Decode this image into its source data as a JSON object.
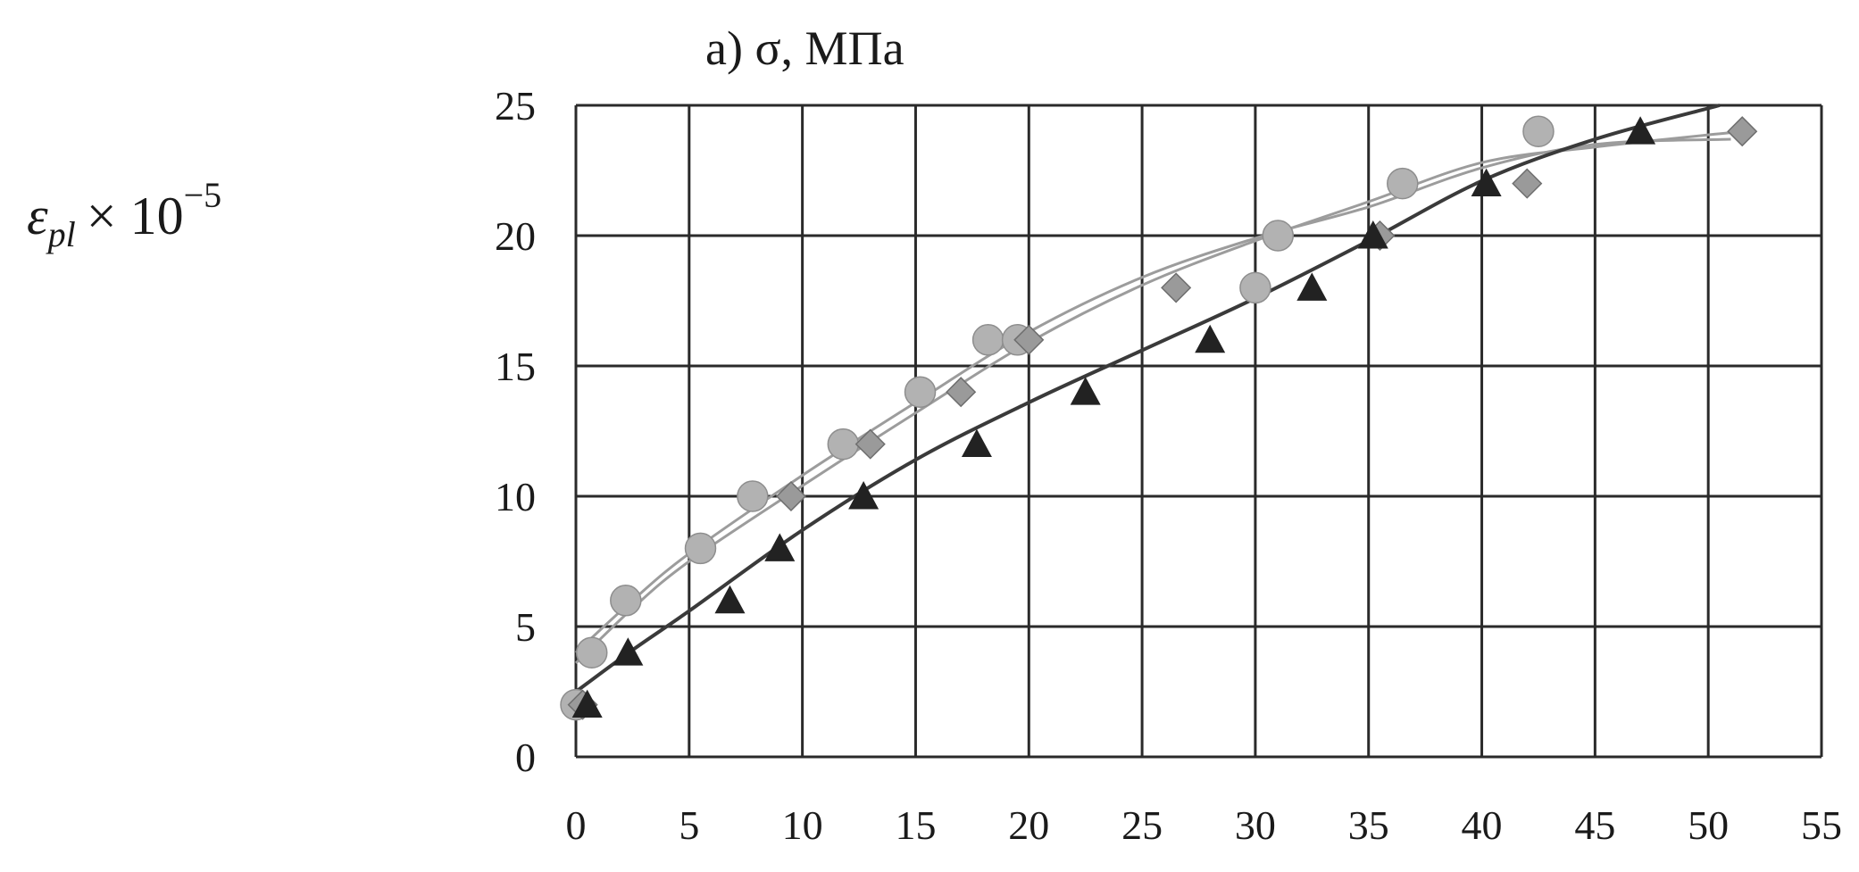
{
  "chart_data": {
    "type": "scatter",
    "title": "a)  σ, МПа",
    "ylabel": "εpl × 10−5",
    "ylabel_parts": {
      "base": "ε",
      "sub": "pl",
      "times": "× 10",
      "sup": "−5"
    },
    "xlabel": "",
    "xlim": [
      0,
      55
    ],
    "ylim": [
      0,
      25
    ],
    "x_ticks": [
      0,
      5,
      10,
      15,
      20,
      25,
      30,
      35,
      40,
      45,
      50,
      55
    ],
    "y_ticks": [
      0,
      5,
      10,
      15,
      20,
      25
    ],
    "grid": true,
    "legend": "none",
    "colors": {
      "circle": "#b2b2b2",
      "diamond": "#9a9a9a",
      "triangle": "#222222",
      "grid": "#2a2a2a",
      "curve_light": "#9c9c9c",
      "curve_dark": "#3a3a3a"
    },
    "series": [
      {
        "marker": "circle",
        "points": [
          [
            0,
            2
          ],
          [
            0.7,
            4
          ],
          [
            2.2,
            6
          ],
          [
            5.5,
            8
          ],
          [
            7.8,
            10
          ],
          [
            11.8,
            12
          ],
          [
            15.2,
            14
          ],
          [
            18.2,
            16
          ],
          [
            19.5,
            16
          ],
          [
            30,
            18
          ],
          [
            31,
            20
          ],
          [
            36.5,
            22
          ],
          [
            42.5,
            24
          ]
        ],
        "curve": [
          [
            0,
            4
          ],
          [
            2.5,
            6
          ],
          [
            5,
            7.8
          ],
          [
            10,
            10.8
          ],
          [
            15,
            13.6
          ],
          [
            20,
            16.3
          ],
          [
            25,
            18.4
          ],
          [
            30,
            19.9
          ],
          [
            35,
            21.1
          ],
          [
            40,
            22.6
          ],
          [
            45,
            23.5
          ],
          [
            51,
            23.7
          ]
        ]
      },
      {
        "marker": "diamond",
        "points": [
          [
            0.3,
            2
          ],
          [
            9.5,
            10
          ],
          [
            13,
            12
          ],
          [
            17,
            14
          ],
          [
            20,
            16
          ],
          [
            26.5,
            18
          ],
          [
            35.5,
            20
          ],
          [
            42,
            22
          ],
          [
            51.5,
            24
          ]
        ],
        "curve": [
          [
            0,
            3.6
          ],
          [
            2.5,
            5.7
          ],
          [
            5,
            7.5
          ],
          [
            10,
            10.4
          ],
          [
            15,
            13.2
          ],
          [
            20,
            15.9
          ],
          [
            25,
            18.1
          ],
          [
            30,
            19.8
          ],
          [
            35,
            21.3
          ],
          [
            40,
            22.8
          ],
          [
            45,
            23.4
          ],
          [
            51.5,
            24
          ]
        ]
      },
      {
        "marker": "triangle",
        "points": [
          [
            0.5,
            2
          ],
          [
            2.3,
            4
          ],
          [
            6.8,
            6
          ],
          [
            9,
            8
          ],
          [
            12.7,
            10
          ],
          [
            17.7,
            12
          ],
          [
            22.5,
            14
          ],
          [
            28,
            16
          ],
          [
            32.5,
            18
          ],
          [
            35.2,
            20
          ],
          [
            40.2,
            22
          ],
          [
            47,
            24
          ]
        ],
        "curve": [
          [
            0,
            2.5
          ],
          [
            2.5,
            4.1
          ],
          [
            5,
            5.6
          ],
          [
            10,
            8.7
          ],
          [
            15,
            11.4
          ],
          [
            20,
            13.6
          ],
          [
            25,
            15.6
          ],
          [
            30,
            17.6
          ],
          [
            35,
            19.8
          ],
          [
            40,
            22.1
          ],
          [
            45,
            23.7
          ],
          [
            50.5,
            25
          ]
        ]
      }
    ]
  }
}
